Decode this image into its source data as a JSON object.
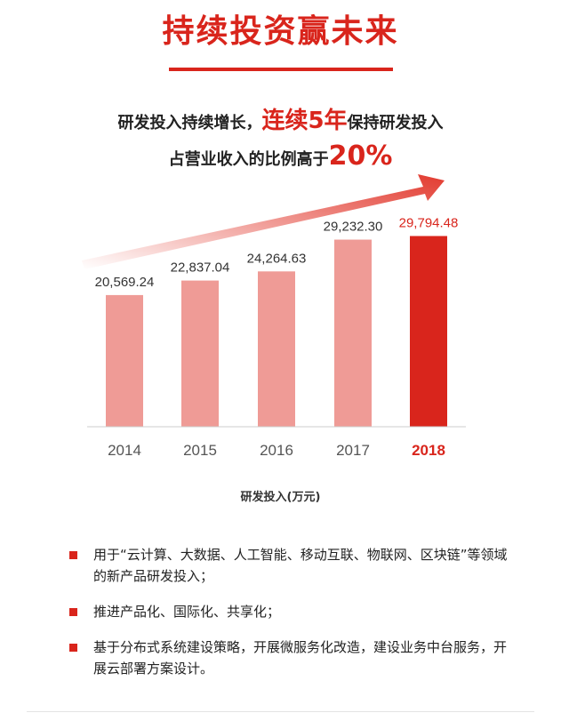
{
  "header": {
    "title": "持续投资赢未来",
    "line1_pre": "研发投入持续增长，",
    "line1_em": "连续5年",
    "line1_post": "保持研发投入",
    "line2_pre": "占营业收入的比例高于",
    "line2_em": "20%"
  },
  "colors": {
    "accent": "#d9251c",
    "bar": "#ef9b96",
    "bar_highlight": "#d9251c",
    "arrow": "#e23a2f",
    "axis": "#cccccc"
  },
  "chart_data": {
    "type": "bar",
    "categories": [
      "2014",
      "2015",
      "2016",
      "2017",
      "2018"
    ],
    "values": [
      20569.24,
      22837.04,
      24264.63,
      29232.3,
      29794.48
    ],
    "value_labels": [
      "20,569.24",
      "22,837.04",
      "24,264.63",
      "29,232.30",
      "29,794.48"
    ],
    "highlight_index": 4,
    "xlabel": "研发投入(万元)",
    "ylabel": "",
    "ylim": [
      0,
      35000
    ],
    "grid": false,
    "trend_arrow": true
  },
  "bullets": [
    "用于“云计算、大数据、人工智能、移动互联、物联网、区块链”等领域的新产品研发投入；",
    "推进产品化、国际化、共享化；",
    "基于分布式系统建设策略，开展微服务化改造，建设业务中台服务，开展云部署方案设计。"
  ]
}
